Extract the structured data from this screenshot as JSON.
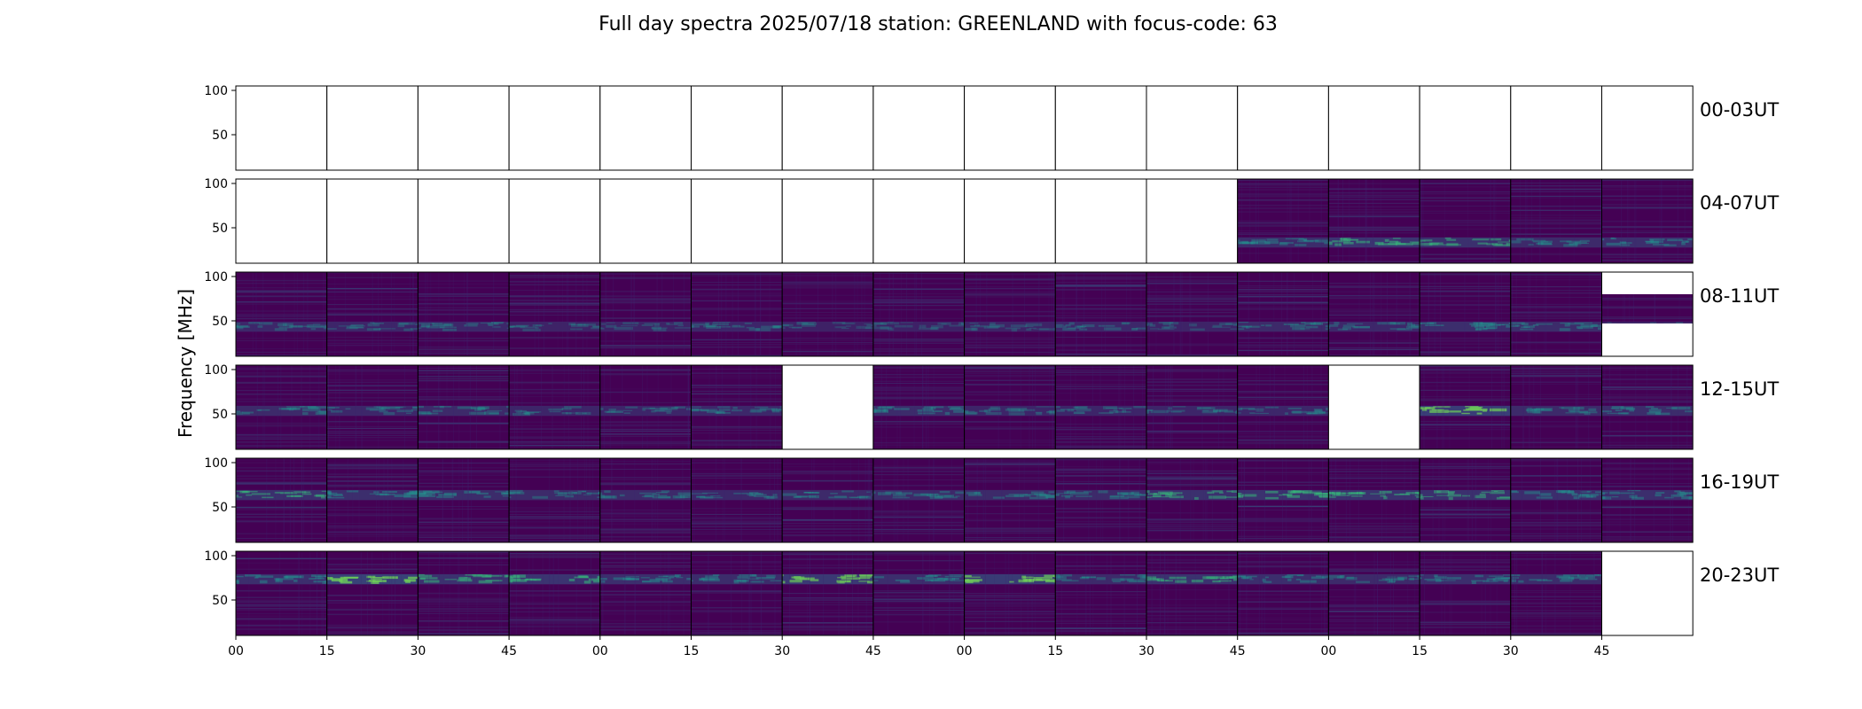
{
  "chart_data": {
    "type": "heatmap",
    "title": "Full day spectra 2025/07/18 station: GREENLAND with focus-code: 63",
    "ylabel": "Frequency [MHz]",
    "yticks": [
      100,
      50
    ],
    "ylim": [
      10,
      105
    ],
    "xticks": [
      "00",
      "15",
      "30",
      "45",
      "00",
      "15",
      "30",
      "45",
      "00",
      "15",
      "30",
      "45",
      "00",
      "15",
      "30",
      "45"
    ],
    "colormap": [
      "#440154",
      "#3b1f6e",
      "#31688e",
      "#21918c",
      "#35b779",
      "#6ece58"
    ],
    "panel_border_color": "#000000",
    "rows": [
      {
        "label": "00-03UT",
        "panels": [
          "empty",
          "empty",
          "empty",
          "empty",
          "empty",
          "empty",
          "empty",
          "empty",
          "empty",
          "empty",
          "empty",
          "empty",
          "empty",
          "empty",
          "empty",
          "empty"
        ]
      },
      {
        "label": "04-07UT",
        "panels": [
          "empty",
          "empty",
          "empty",
          "empty",
          "empty",
          "empty",
          "empty",
          "empty",
          "empty",
          "empty",
          "empty",
          "data",
          "data",
          "data",
          "data",
          "data"
        ]
      },
      {
        "label": "08-11UT",
        "panels": [
          "data",
          "data",
          "data",
          "data",
          "data",
          "data",
          "data",
          "data",
          "data",
          "data",
          "data",
          "data",
          "data",
          "data",
          "data",
          "partial"
        ]
      },
      {
        "label": "12-15UT",
        "panels": [
          "data",
          "data",
          "data",
          "data",
          "data",
          "data",
          "empty",
          "data",
          "data",
          "data",
          "data",
          "data",
          "empty",
          "data",
          "data",
          "data"
        ]
      },
      {
        "label": "16-19UT",
        "panels": [
          "data",
          "data",
          "data",
          "data",
          "data",
          "data",
          "data",
          "data",
          "data",
          "data",
          "data",
          "data",
          "data",
          "data",
          "data",
          "data"
        ]
      },
      {
        "label": "20-23UT",
        "panels": [
          "data",
          "data",
          "data",
          "data",
          "data",
          "data",
          "data",
          "data",
          "data",
          "data",
          "data",
          "data",
          "data",
          "data",
          "data",
          "empty"
        ]
      }
    ],
    "low_band_intensity": [
      [
        0,
        0,
        0,
        0,
        0,
        0,
        0,
        0,
        0,
        0,
        0,
        0,
        0,
        0,
        0,
        0
      ],
      [
        0,
        0,
        0,
        0,
        0,
        0,
        0,
        0,
        0,
        0,
        0,
        0.4,
        0.6,
        0.5,
        0.35,
        0.45
      ],
      [
        0.3,
        0.25,
        0.3,
        0.2,
        0.2,
        0.25,
        0.15,
        0.15,
        0.2,
        0.3,
        0.2,
        0.35,
        0.3,
        0.45,
        0.4,
        0
      ],
      [
        0.35,
        0.3,
        0.35,
        0.25,
        0.25,
        0.3,
        0,
        0.4,
        0.25,
        0.25,
        0.25,
        0.3,
        0,
        0.85,
        0.35,
        0.4
      ],
      [
        0.5,
        0.45,
        0.4,
        0.35,
        0.35,
        0.3,
        0.35,
        0.35,
        0.35,
        0.35,
        0.5,
        0.55,
        0.55,
        0.5,
        0.45,
        0.45
      ],
      [
        0.45,
        0.95,
        0.55,
        0.6,
        0.45,
        0.4,
        0.75,
        0.45,
        0.8,
        0.35,
        0.55,
        0.45,
        0.35,
        0.45,
        0.4,
        0
      ]
    ]
  }
}
